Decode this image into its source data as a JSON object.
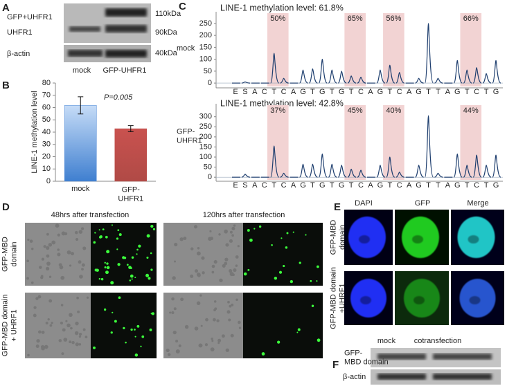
{
  "panel_labels": [
    "A",
    "B",
    "C",
    "D",
    "E",
    "F"
  ],
  "panel_a": {
    "rows": [
      "GFP+UHFR1",
      "UHFR1",
      "β-actin"
    ],
    "sizes": [
      "110kDa",
      "90kDa",
      "40kDa"
    ],
    "lanes": [
      "mock",
      "GFP-UHFR1"
    ]
  },
  "chart_data": [
    {
      "type": "bar",
      "y_label": "LINE-1 methylation level",
      "annotation": "P=0.005",
      "categories": [
        "mock",
        "GFP-\nUHFR1"
      ],
      "values": [
        61.8,
        42.8
      ],
      "errors": [
        7,
        2.5
      ],
      "colors": [
        "#4a86d6",
        "#c0504d"
      ],
      "ylim": [
        0,
        80
      ],
      "yticks": [
        0,
        10,
        20,
        30,
        40,
        50,
        60,
        70,
        80
      ]
    },
    {
      "type": "pyrogram",
      "title": "LINE-1 methylation level: 61.8%",
      "row_label": "mock",
      "color": "#1f3f6f",
      "categories": [
        "E",
        "S",
        "A",
        "C",
        "T",
        "C",
        "A",
        "G",
        "T",
        "G",
        "T",
        "G",
        "T",
        "C",
        "A",
        "G",
        "T",
        "C",
        "A",
        "G",
        "T",
        "T",
        "A",
        "G",
        "T",
        "C",
        "T",
        "G"
      ],
      "values": [
        0,
        5,
        0,
        0,
        125,
        20,
        0,
        55,
        60,
        100,
        55,
        50,
        30,
        25,
        0,
        55,
        75,
        45,
        0,
        20,
        250,
        20,
        0,
        95,
        55,
        65,
        40,
        95
      ],
      "highlight_labels": [
        "50%",
        "65%",
        "56%",
        "66%"
      ],
      "ylim": [
        -20,
        270
      ],
      "yticks": [
        0,
        50,
        100,
        150,
        200,
        250
      ]
    },
    {
      "type": "pyrogram",
      "title": "LINE-1 methylation level: 42.8%",
      "row_label": "GFP-\nUHFR1",
      "color": "#1f3f6f",
      "categories": [
        "E",
        "S",
        "A",
        "C",
        "T",
        "C",
        "A",
        "G",
        "T",
        "G",
        "T",
        "G",
        "T",
        "C",
        "A",
        "G",
        "T",
        "C",
        "A",
        "G",
        "T",
        "T",
        "A",
        "G",
        "T",
        "C",
        "T",
        "G"
      ],
      "values": [
        0,
        15,
        0,
        0,
        155,
        20,
        0,
        65,
        65,
        115,
        65,
        60,
        40,
        35,
        0,
        60,
        100,
        25,
        0,
        60,
        305,
        20,
        0,
        115,
        60,
        110,
        60,
        110
      ],
      "highlight_labels": [
        "37%",
        "45%",
        "40%",
        "44%"
      ],
      "ylim": [
        -20,
        330
      ],
      "yticks": [
        0,
        50,
        100,
        150,
        200,
        250,
        300
      ]
    }
  ],
  "panel_d": {
    "columns": [
      "48hrs after transfection",
      "120hrs after transfection"
    ],
    "rows": [
      "GFP-MBD\ndomain",
      "GFP-MBD domain\n+ UHRF1"
    ]
  },
  "panel_e": {
    "columns": [
      "DAPI",
      "GFP",
      "Merge"
    ],
    "rows": [
      "GFP-MBD\ndomain",
      "GFP-MBD domain\n+UHRF1"
    ]
  },
  "panel_f": {
    "lanes": [
      "mock",
      "cotransfection"
    ],
    "rows": [
      "GFP-\nMBD domain",
      "β-actin"
    ]
  }
}
